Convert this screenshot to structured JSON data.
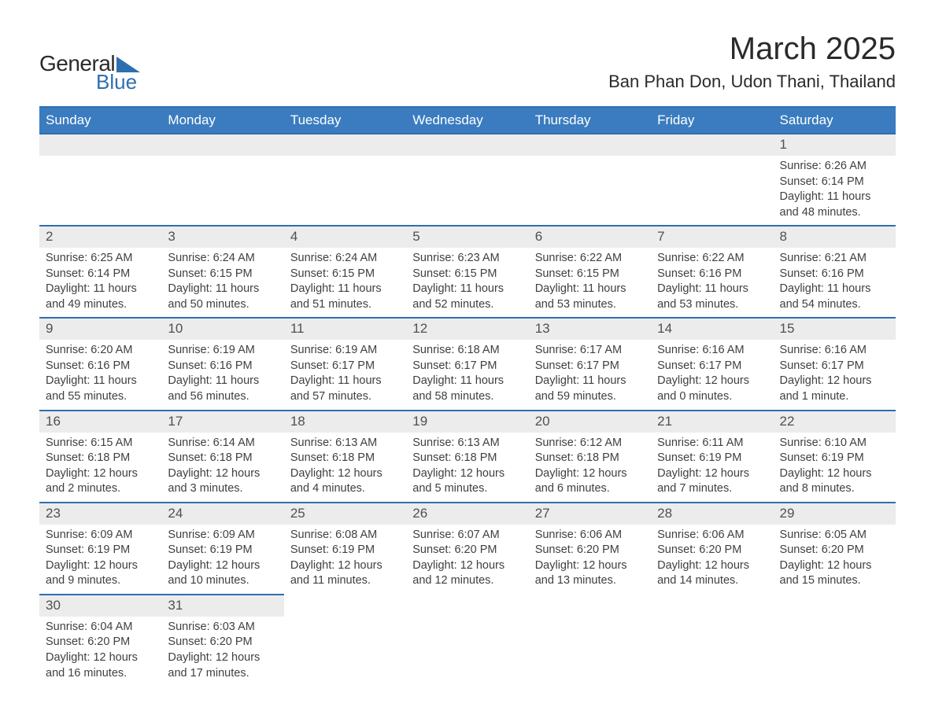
{
  "logo": {
    "text_general": "General",
    "text_blue": "Blue",
    "triangle_color": "#2e6fb0"
  },
  "header": {
    "month_title": "March 2025",
    "location": "Ban Phan Don, Udon Thani, Thailand"
  },
  "colors": {
    "header_bg": "#3a7cbf",
    "header_text": "#ffffff",
    "row_divider": "#2e6fb0",
    "daynum_bg": "#ececec",
    "body_text": "#404040",
    "background": "#ffffff"
  },
  "typography": {
    "month_title_fontsize": 40,
    "location_fontsize": 22,
    "header_fontsize": 17,
    "daynum_fontsize": 17,
    "detail_fontsize": 14.5,
    "font_family": "Arial"
  },
  "calendar": {
    "columns": [
      "Sunday",
      "Monday",
      "Tuesday",
      "Wednesday",
      "Thursday",
      "Friday",
      "Saturday"
    ],
    "weeks": [
      [
        null,
        null,
        null,
        null,
        null,
        null,
        {
          "day": "1",
          "sunrise": "Sunrise: 6:26 AM",
          "sunset": "Sunset: 6:14 PM",
          "daylight": "Daylight: 11 hours and 48 minutes."
        }
      ],
      [
        {
          "day": "2",
          "sunrise": "Sunrise: 6:25 AM",
          "sunset": "Sunset: 6:14 PM",
          "daylight": "Daylight: 11 hours and 49 minutes."
        },
        {
          "day": "3",
          "sunrise": "Sunrise: 6:24 AM",
          "sunset": "Sunset: 6:15 PM",
          "daylight": "Daylight: 11 hours and 50 minutes."
        },
        {
          "day": "4",
          "sunrise": "Sunrise: 6:24 AM",
          "sunset": "Sunset: 6:15 PM",
          "daylight": "Daylight: 11 hours and 51 minutes."
        },
        {
          "day": "5",
          "sunrise": "Sunrise: 6:23 AM",
          "sunset": "Sunset: 6:15 PM",
          "daylight": "Daylight: 11 hours and 52 minutes."
        },
        {
          "day": "6",
          "sunrise": "Sunrise: 6:22 AM",
          "sunset": "Sunset: 6:15 PM",
          "daylight": "Daylight: 11 hours and 53 minutes."
        },
        {
          "day": "7",
          "sunrise": "Sunrise: 6:22 AM",
          "sunset": "Sunset: 6:16 PM",
          "daylight": "Daylight: 11 hours and 53 minutes."
        },
        {
          "day": "8",
          "sunrise": "Sunrise: 6:21 AM",
          "sunset": "Sunset: 6:16 PM",
          "daylight": "Daylight: 11 hours and 54 minutes."
        }
      ],
      [
        {
          "day": "9",
          "sunrise": "Sunrise: 6:20 AM",
          "sunset": "Sunset: 6:16 PM",
          "daylight": "Daylight: 11 hours and 55 minutes."
        },
        {
          "day": "10",
          "sunrise": "Sunrise: 6:19 AM",
          "sunset": "Sunset: 6:16 PM",
          "daylight": "Daylight: 11 hours and 56 minutes."
        },
        {
          "day": "11",
          "sunrise": "Sunrise: 6:19 AM",
          "sunset": "Sunset: 6:17 PM",
          "daylight": "Daylight: 11 hours and 57 minutes."
        },
        {
          "day": "12",
          "sunrise": "Sunrise: 6:18 AM",
          "sunset": "Sunset: 6:17 PM",
          "daylight": "Daylight: 11 hours and 58 minutes."
        },
        {
          "day": "13",
          "sunrise": "Sunrise: 6:17 AM",
          "sunset": "Sunset: 6:17 PM",
          "daylight": "Daylight: 11 hours and 59 minutes."
        },
        {
          "day": "14",
          "sunrise": "Sunrise: 6:16 AM",
          "sunset": "Sunset: 6:17 PM",
          "daylight": "Daylight: 12 hours and 0 minutes."
        },
        {
          "day": "15",
          "sunrise": "Sunrise: 6:16 AM",
          "sunset": "Sunset: 6:17 PM",
          "daylight": "Daylight: 12 hours and 1 minute."
        }
      ],
      [
        {
          "day": "16",
          "sunrise": "Sunrise: 6:15 AM",
          "sunset": "Sunset: 6:18 PM",
          "daylight": "Daylight: 12 hours and 2 minutes."
        },
        {
          "day": "17",
          "sunrise": "Sunrise: 6:14 AM",
          "sunset": "Sunset: 6:18 PM",
          "daylight": "Daylight: 12 hours and 3 minutes."
        },
        {
          "day": "18",
          "sunrise": "Sunrise: 6:13 AM",
          "sunset": "Sunset: 6:18 PM",
          "daylight": "Daylight: 12 hours and 4 minutes."
        },
        {
          "day": "19",
          "sunrise": "Sunrise: 6:13 AM",
          "sunset": "Sunset: 6:18 PM",
          "daylight": "Daylight: 12 hours and 5 minutes."
        },
        {
          "day": "20",
          "sunrise": "Sunrise: 6:12 AM",
          "sunset": "Sunset: 6:18 PM",
          "daylight": "Daylight: 12 hours and 6 minutes."
        },
        {
          "day": "21",
          "sunrise": "Sunrise: 6:11 AM",
          "sunset": "Sunset: 6:19 PM",
          "daylight": "Daylight: 12 hours and 7 minutes."
        },
        {
          "day": "22",
          "sunrise": "Sunrise: 6:10 AM",
          "sunset": "Sunset: 6:19 PM",
          "daylight": "Daylight: 12 hours and 8 minutes."
        }
      ],
      [
        {
          "day": "23",
          "sunrise": "Sunrise: 6:09 AM",
          "sunset": "Sunset: 6:19 PM",
          "daylight": "Daylight: 12 hours and 9 minutes."
        },
        {
          "day": "24",
          "sunrise": "Sunrise: 6:09 AM",
          "sunset": "Sunset: 6:19 PM",
          "daylight": "Daylight: 12 hours and 10 minutes."
        },
        {
          "day": "25",
          "sunrise": "Sunrise: 6:08 AM",
          "sunset": "Sunset: 6:19 PM",
          "daylight": "Daylight: 12 hours and 11 minutes."
        },
        {
          "day": "26",
          "sunrise": "Sunrise: 6:07 AM",
          "sunset": "Sunset: 6:20 PM",
          "daylight": "Daylight: 12 hours and 12 minutes."
        },
        {
          "day": "27",
          "sunrise": "Sunrise: 6:06 AM",
          "sunset": "Sunset: 6:20 PM",
          "daylight": "Daylight: 12 hours and 13 minutes."
        },
        {
          "day": "28",
          "sunrise": "Sunrise: 6:06 AM",
          "sunset": "Sunset: 6:20 PM",
          "daylight": "Daylight: 12 hours and 14 minutes."
        },
        {
          "day": "29",
          "sunrise": "Sunrise: 6:05 AM",
          "sunset": "Sunset: 6:20 PM",
          "daylight": "Daylight: 12 hours and 15 minutes."
        }
      ],
      [
        {
          "day": "30",
          "sunrise": "Sunrise: 6:04 AM",
          "sunset": "Sunset: 6:20 PM",
          "daylight": "Daylight: 12 hours and 16 minutes."
        },
        {
          "day": "31",
          "sunrise": "Sunrise: 6:03 AM",
          "sunset": "Sunset: 6:20 PM",
          "daylight": "Daylight: 12 hours and 17 minutes."
        },
        null,
        null,
        null,
        null,
        null
      ]
    ]
  }
}
